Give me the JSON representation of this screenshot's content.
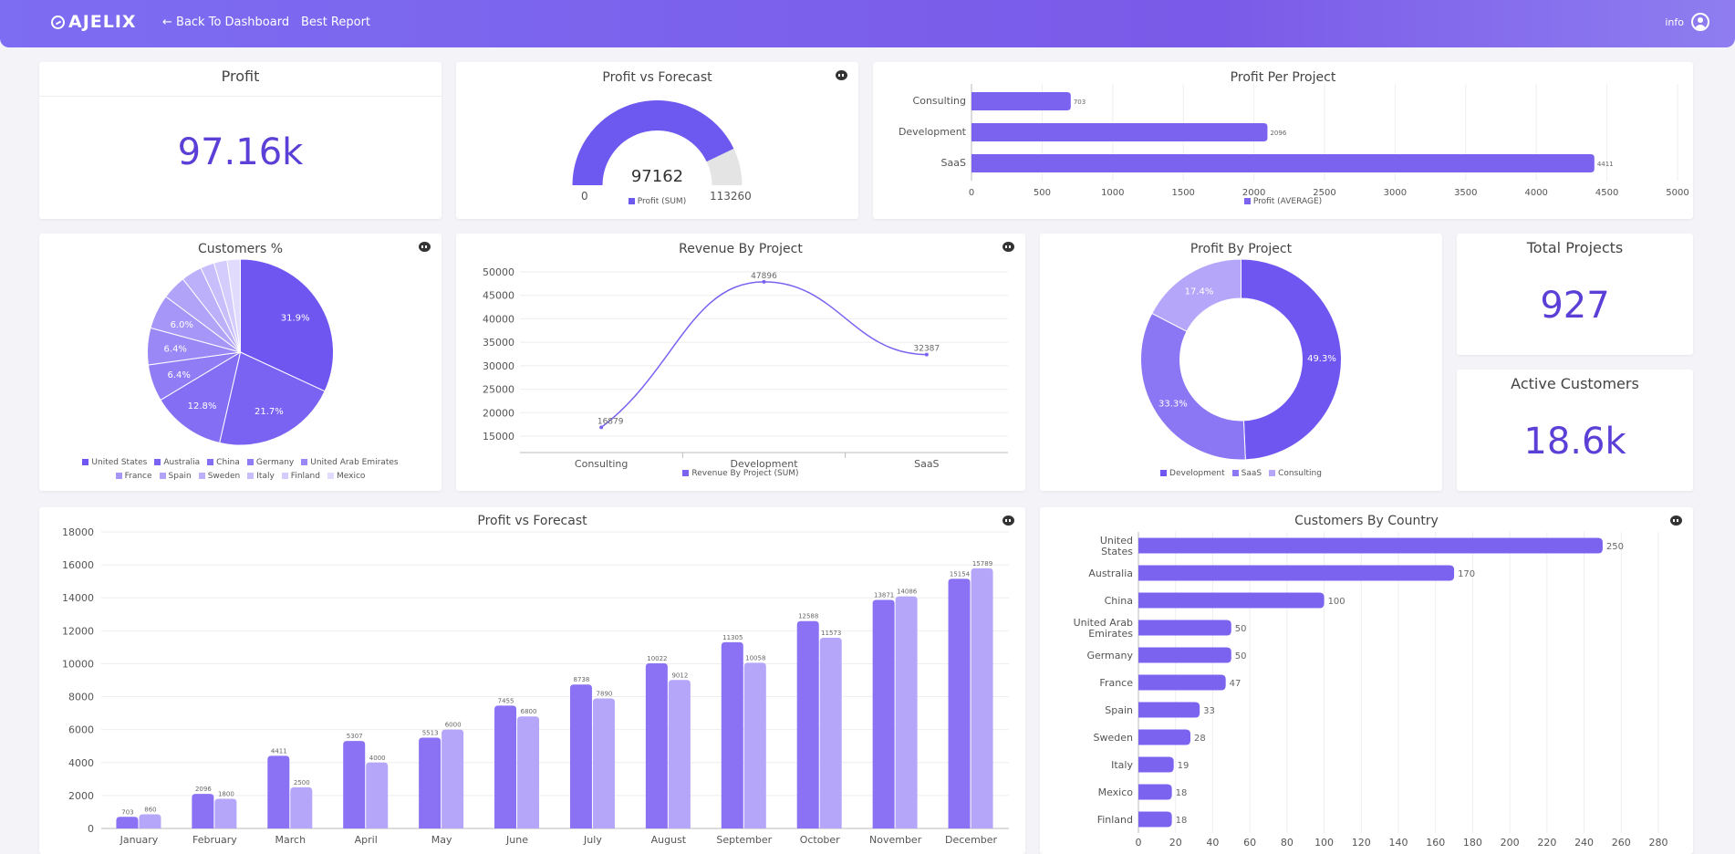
{
  "header": {
    "logo": "AJELIX",
    "back_label": "← Back To Dashboard",
    "report_label": "Best Report",
    "user_label": "info"
  },
  "colors": {
    "primary": "#7b63f0",
    "dark": "#6a4ff0",
    "mid": "#8f7af5",
    "light": "#b5a6fa",
    "accent_text": "#5b3fd6"
  },
  "kpis": {
    "profit": {
      "title": "Profit",
      "value": "97.16k"
    },
    "total_projects": {
      "title": "Total Projects",
      "value": "927"
    },
    "active_customers": {
      "title": "Active Customers",
      "value": "18.6k"
    }
  },
  "gauge": {
    "title": "Profit vs Forecast",
    "value_label": "97162",
    "min_label": "0",
    "max_label": "113260",
    "legend": "Profit (SUM)"
  },
  "chart_data": [
    {
      "id": "profit_per_project",
      "type": "bar",
      "orientation": "horizontal",
      "title": "Profit Per Project",
      "categories": [
        "Consulting",
        "Development",
        "SaaS"
      ],
      "values": [
        703,
        2096,
        4411
      ],
      "value_labels": [
        "703",
        "2096",
        "4411"
      ],
      "xticks": [
        "0",
        "500",
        "1000",
        "1500",
        "2000",
        "2500",
        "3000",
        "3500",
        "4000",
        "4500",
        "5000"
      ],
      "xlim": [
        0,
        5000
      ],
      "legend": "Profit (AVERAGE)"
    },
    {
      "id": "customers_pct",
      "type": "pie",
      "title": "Customers %",
      "labels": [
        "United States",
        "Australia",
        "China",
        "Germany",
        "United Arab Emirates",
        "France",
        "Spain",
        "Sweden",
        "Italy",
        "Finland",
        "Mexico"
      ],
      "values": [
        31.9,
        21.7,
        12.8,
        6.4,
        6.4,
        6.0,
        4.2,
        3.6,
        2.4,
        2.3,
        2.3
      ],
      "slice_labels": [
        "31.9%",
        "21.7%",
        "12.8%",
        "6.4%",
        "6.4%",
        "6.0%",
        "",
        "",
        "",
        "",
        ""
      ],
      "colors": [
        "#7056f0",
        "#7a62f2",
        "#846ef3",
        "#907cf5",
        "#9a88f6",
        "#a596f7",
        "#b0a3f8",
        "#bbb0f9",
        "#c7befb",
        "#d3ccfc",
        "#e1dcfd"
      ]
    },
    {
      "id": "revenue_by_project",
      "type": "line",
      "title": "Revenue By Project",
      "categories": [
        "Consulting",
        "Development",
        "SaaS"
      ],
      "values": [
        16879,
        47896,
        32387
      ],
      "value_labels": [
        "16879",
        "47896",
        "32387"
      ],
      "yticks": [
        "15000",
        "20000",
        "25000",
        "30000",
        "35000",
        "40000",
        "45000",
        "50000"
      ],
      "ylim": [
        15000,
        50000
      ],
      "legend": "Revenue By Project (SUM)"
    },
    {
      "id": "profit_by_project",
      "type": "pie",
      "title": "Profit By Project",
      "labels": [
        "Development",
        "SaaS",
        "Consulting"
      ],
      "values": [
        49.3,
        33.3,
        17.4
      ],
      "slice_labels": [
        "49.3%",
        "33.3%",
        "17.4%"
      ],
      "colors": [
        "#7056f0",
        "#8b76f4",
        "#b5a6fa"
      ]
    },
    {
      "id": "profit_vs_forecast_monthly",
      "type": "bar",
      "title": "Profit vs Forecast",
      "categories": [
        "January",
        "February",
        "March",
        "April",
        "May",
        "June",
        "July",
        "August",
        "September",
        "October",
        "November",
        "December"
      ],
      "series": [
        {
          "values": [
            703,
            2096,
            4411,
            5307,
            5513,
            7455,
            8738,
            10022,
            11305,
            12588,
            13871,
            15154
          ],
          "labels": [
            "703",
            "2096",
            "4411",
            "5307",
            "5513",
            "7455",
            "8738",
            "10022",
            "11305",
            "12588",
            "13871",
            "15154"
          ],
          "color": "#8b72f4"
        },
        {
          "values": [
            860,
            1800,
            2500,
            4000,
            6000,
            6800,
            7890,
            9012,
            10058,
            11573,
            14086,
            15789
          ],
          "labels": [
            "860",
            "1800",
            "2500",
            "4000",
            "6000",
            "6800",
            "7890",
            "9012",
            "10058",
            "11573",
            "14086",
            "15789"
          ],
          "color": "#b5a6fa"
        }
      ],
      "yticks": [
        "0",
        "2000",
        "4000",
        "6000",
        "8000",
        "10000",
        "12000",
        "14000",
        "16000",
        "18000"
      ],
      "ylim": [
        0,
        18000
      ]
    },
    {
      "id": "customers_by_country",
      "type": "bar",
      "orientation": "horizontal",
      "title": "Customers By Country",
      "categories": [
        [
          "United",
          "States"
        ],
        [
          "Australia"
        ],
        [
          "China"
        ],
        [
          "United Arab",
          "Emirates"
        ],
        [
          "Germany"
        ],
        [
          "France"
        ],
        [
          "Spain"
        ],
        [
          "Sweden"
        ],
        [
          "Italy"
        ],
        [
          "Mexico"
        ],
        [
          "Finland"
        ]
      ],
      "values": [
        250,
        170,
        100,
        50,
        50,
        47,
        33,
        28,
        19,
        18,
        18
      ],
      "value_labels": [
        "250",
        "170",
        "100",
        "50",
        "50",
        "47",
        "33",
        "28",
        "19",
        "18",
        "18"
      ],
      "xticks": [
        "0",
        "20",
        "40",
        "60",
        "80",
        "100",
        "120",
        "140",
        "160",
        "180",
        "200",
        "220",
        "240",
        "260",
        "280"
      ],
      "xlim": [
        0,
        280
      ]
    }
  ]
}
